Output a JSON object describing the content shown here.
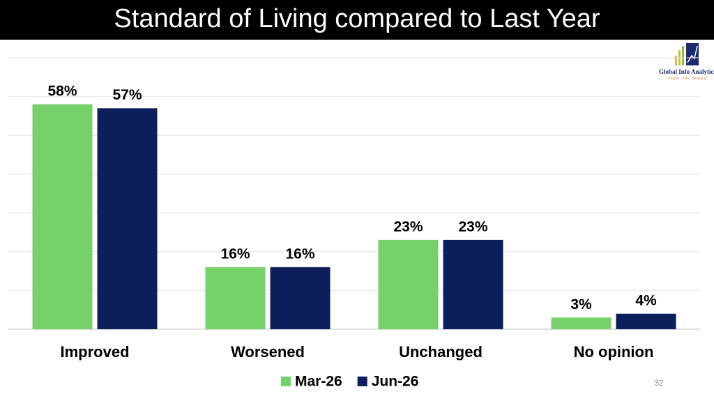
{
  "chart_data": {
    "type": "bar",
    "title": "Standard of Living compared to Last Year",
    "categories": [
      "Improved",
      "Worsened",
      "Unchanged",
      "No opinion"
    ],
    "series": [
      {
        "name": "Mar-26",
        "color": "#77d16a",
        "values": [
          58,
          16,
          23,
          3
        ],
        "value_labels": [
          "58%",
          "16%",
          "23%",
          "3%"
        ]
      },
      {
        "name": "Jun-26",
        "color": "#0c1f5c",
        "values": [
          57,
          16,
          23,
          4
        ],
        "value_labels": [
          "57%",
          "16%",
          "23%",
          "4%"
        ]
      }
    ],
    "ylim": [
      0,
      70
    ],
    "yticks": [
      0,
      10,
      20,
      30,
      40,
      50,
      60,
      70
    ],
    "grid": true,
    "legend": "bottom"
  },
  "logo": {
    "name": "Global Info Analytics",
    "tagline": "Insights · Polls · Modelling"
  },
  "page_number": "32"
}
